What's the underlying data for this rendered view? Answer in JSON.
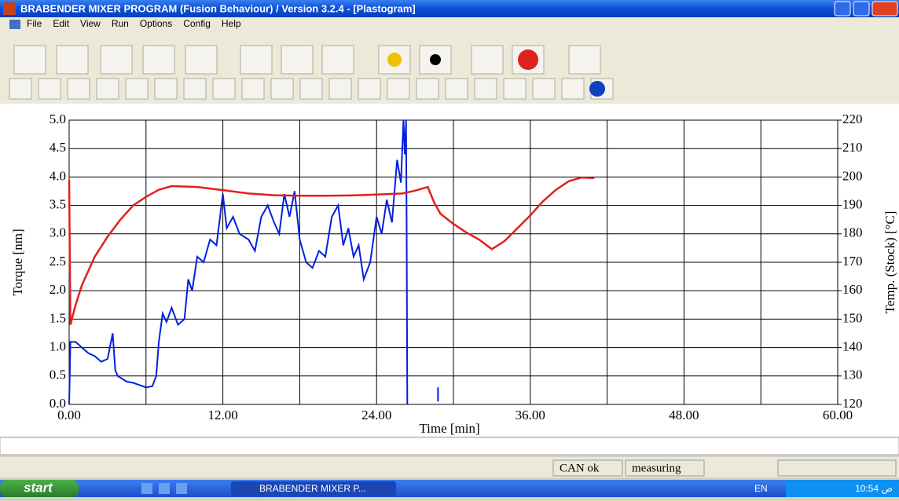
{
  "window_title": "BRABENDER MIXER PROGRAM (Fusion Behaviour) / Version 3.2.4  - [Plastogram]",
  "menu": [
    "File",
    "Edit",
    "View",
    "Run",
    "Options",
    "Config",
    "Help"
  ],
  "chart_data": {
    "type": "line",
    "xlabel": "Time [min]",
    "ylabel": "Torque [nm]",
    "y2label": "Temp. (Stock) [°C]",
    "xlim": [
      0,
      60
    ],
    "xticks": [
      {
        "value": 0,
        "label": "0.00"
      },
      {
        "value": 12,
        "label": "12.00"
      },
      {
        "value": 24,
        "label": "24.00"
      },
      {
        "value": 36,
        "label": "36.00"
      },
      {
        "value": 48,
        "label": "48.00"
      },
      {
        "value": 60,
        "label": "60.00"
      }
    ],
    "xminor": [
      6,
      18,
      30,
      42,
      54
    ],
    "ylim": [
      0,
      5
    ],
    "yticks": [
      {
        "value": 0,
        "label": "0.0"
      },
      0.5,
      {
        "value": 1,
        "label": "1.0"
      },
      1.5,
      {
        "value": 2,
        "label": "2.0"
      },
      2.5,
      {
        "value": 3,
        "label": "3.0"
      },
      3.5,
      {
        "value": 4,
        "label": "4.0"
      },
      4.5,
      {
        "value": 5,
        "label": "5.0"
      }
    ],
    "y2lim": [
      120,
      220
    ],
    "y2ticks": [
      120,
      130,
      140,
      150,
      160,
      170,
      180,
      190,
      200,
      210,
      220
    ],
    "grid": true,
    "series": [
      {
        "name": "Torque",
        "color": "#0020e0",
        "x": [
          0,
          0.1,
          0.5,
          1,
          1.5,
          2,
          2.5,
          3,
          3.4,
          3.6,
          3.8,
          4.5,
          5,
          6,
          6.5,
          6.8,
          7,
          7.3,
          7.6,
          8,
          8.5,
          9,
          9.3,
          9.6,
          10,
          10.5,
          11,
          11.5,
          12,
          12.3,
          12.8,
          13.3,
          14,
          14.5,
          15,
          15.5,
          16,
          16.4,
          16.8,
          17.2,
          17.6,
          18,
          18.5,
          19,
          19.5,
          20,
          20.5,
          21,
          21.4,
          21.8,
          22.2,
          22.6,
          23,
          23.5,
          24,
          24.4,
          24.8,
          25.2,
          25.6,
          25.9,
          26.1,
          26.2,
          26.3,
          26.35,
          26.4,
          27,
          28.8,
          28.8
        ],
        "values": [
          0,
          1.1,
          1.1,
          1.0,
          0.9,
          0.85,
          0.75,
          0.8,
          1.25,
          0.6,
          0.5,
          0.4,
          0.38,
          0.3,
          0.32,
          0.5,
          1.1,
          1.6,
          1.45,
          1.7,
          1.4,
          1.5,
          2.2,
          2.0,
          2.6,
          2.5,
          2.9,
          2.8,
          3.7,
          3.1,
          3.3,
          3.0,
          2.9,
          2.7,
          3.3,
          3.5,
          3.2,
          3.0,
          3.7,
          3.3,
          3.75,
          2.9,
          2.5,
          2.4,
          2.7,
          2.6,
          3.3,
          3.5,
          2.8,
          3.1,
          2.6,
          2.8,
          2.2,
          2.5,
          3.3,
          3.0,
          3.6,
          3.2,
          4.3,
          3.9,
          5.0,
          4.4,
          5.0,
          3.0,
          0,
          null,
          0.3,
          0.05
        ]
      },
      {
        "name": "Temp. (Stock)",
        "color": "#e02020",
        "axis": "y2",
        "x": [
          0,
          0.1,
          0.5,
          1,
          2,
          3,
          4,
          5,
          6,
          7,
          8,
          10,
          12,
          14,
          16,
          18,
          20,
          22,
          24,
          26,
          27,
          28,
          28.5,
          29,
          30,
          31,
          32,
          33,
          34,
          35,
          36,
          37,
          38,
          39,
          40,
          41
        ],
        "values": [
          199,
          148,
          155,
          162,
          172,
          179,
          185,
          190,
          193,
          195.5,
          196.8,
          196.5,
          195.4,
          194.2,
          193.6,
          193.4,
          193.4,
          193.5,
          193.8,
          194.2,
          195.2,
          196.5,
          191,
          187,
          183.5,
          180.5,
          178,
          174.6,
          177.5,
          182,
          186.5,
          191.5,
          195.5,
          198.5,
          199.8,
          199.6
        ]
      }
    ]
  },
  "status": [
    "CAN ok",
    "measuring"
  ],
  "taskbar": {
    "start": "start",
    "task": "BRABENDER MIXER P...",
    "lang": "EN",
    "clock": "10:54 ص"
  }
}
